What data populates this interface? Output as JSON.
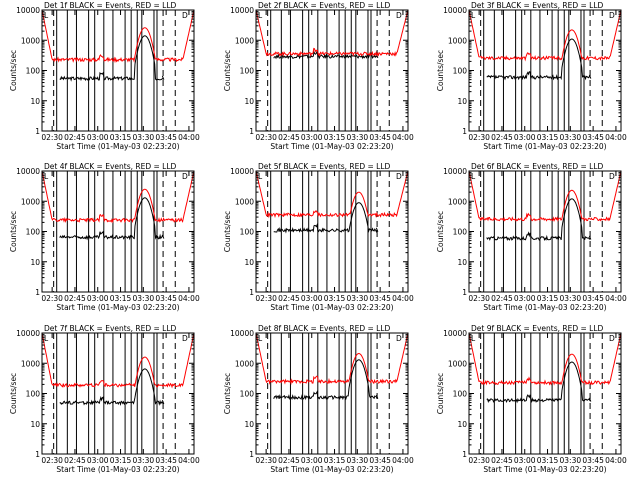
{
  "colors": {
    "events": "#000000",
    "lld": "#ff0000",
    "axes": "#000000",
    "background": "#ffffff"
  },
  "common": {
    "ylabel": "Counts/sec",
    "xlabel": "Start Time (01-May-03 02:23:20)",
    "title_suffix": "BLACK = Events, RED = LLD",
    "x_ticks": [
      "02:30",
      "02:45",
      "03:00",
      "03:15",
      "03:30",
      "03:45",
      "04:00"
    ],
    "y_ticks": [
      "1",
      "10",
      "100",
      "1000",
      "10000"
    ],
    "corner_marks": [
      "L",
      "D"
    ]
  },
  "chart_data": [
    {
      "type": "line",
      "title": "Det 1f  BLACK = Events, RED = LLD",
      "x_range": [
        "02:23:20",
        "04:03:20"
      ],
      "y_scale": "log",
      "ylim": [
        1,
        10000
      ],
      "series": [
        {
          "name": "BLACK = Events",
          "level": 55,
          "dip": 0.0,
          "peak": 1400
        },
        {
          "name": "RED = LLD",
          "level": 230,
          "dip": 0.0,
          "peak": 2600
        }
      ]
    },
    {
      "type": "line",
      "title": "Det 2f  BLACK = Events, RED = LLD",
      "x_range": [
        "02:23:20",
        "04:03:20"
      ],
      "y_scale": "log",
      "ylim": [
        1,
        10000
      ],
      "series": [
        {
          "name": "BLACK = Events",
          "level": 290,
          "dip": 0.0,
          "peak": 0
        },
        {
          "name": "RED = LLD",
          "level": 360,
          "dip": 0.0,
          "peak": 0
        }
      ]
    },
    {
      "type": "line",
      "title": "Det 3f  BLACK = Events, RED = LLD",
      "x_range": [
        "02:23:20",
        "04:03:20"
      ],
      "y_scale": "log",
      "ylim": [
        1,
        10000
      ],
      "series": [
        {
          "name": "BLACK = Events",
          "level": 60,
          "dip": 0.0,
          "peak": 1100
        },
        {
          "name": "RED = LLD",
          "level": 260,
          "dip": 0.0,
          "peak": 2200
        }
      ]
    },
    {
      "type": "line",
      "title": "Det 4f  BLACK = Events, RED = LLD",
      "x_range": [
        "02:23:20",
        "04:03:20"
      ],
      "y_scale": "log",
      "ylim": [
        1,
        10000
      ],
      "series": [
        {
          "name": "BLACK = Events",
          "level": 65,
          "dip": 0.0,
          "peak": 1300
        },
        {
          "name": "RED = LLD",
          "level": 240,
          "dip": 0.0,
          "peak": 2500
        }
      ]
    },
    {
      "type": "line",
      "title": "Det 5f  BLACK = Events, RED = LLD",
      "x_range": [
        "02:23:20",
        "04:03:20"
      ],
      "y_scale": "log",
      "ylim": [
        1,
        10000
      ],
      "series": [
        {
          "name": "BLACK = Events",
          "level": 110,
          "dip": 0.0,
          "peak": 900
        },
        {
          "name": "RED = LLD",
          "level": 360,
          "dip": 0.0,
          "peak": 2000
        }
      ]
    },
    {
      "type": "line",
      "title": "Det 6f  BLACK = Events, RED = LLD",
      "x_range": [
        "02:23:20",
        "04:03:20"
      ],
      "y_scale": "log",
      "ylim": [
        1,
        10000
      ],
      "series": [
        {
          "name": "BLACK = Events",
          "level": 60,
          "dip": 0.0,
          "peak": 1200
        },
        {
          "name": "RED = LLD",
          "level": 260,
          "dip": 0.0,
          "peak": 2300
        }
      ]
    },
    {
      "type": "line",
      "title": "Det 7f  BLACK = Events, RED = LLD",
      "x_range": [
        "02:23:20",
        "04:03:20"
      ],
      "y_scale": "log",
      "ylim": [
        1,
        10000
      ],
      "series": [
        {
          "name": "BLACK = Events",
          "level": 50,
          "dip": 0.0,
          "peak": 650
        },
        {
          "name": "RED = LLD",
          "level": 190,
          "dip": 0.0,
          "peak": 1600
        }
      ]
    },
    {
      "type": "line",
      "title": "Det 8f  BLACK = Events, RED = LLD",
      "x_range": [
        "02:23:20",
        "04:03:20"
      ],
      "y_scale": "log",
      "ylim": [
        1,
        10000
      ],
      "series": [
        {
          "name": "BLACK = Events",
          "level": 75,
          "dip": 0.0,
          "peak": 1300
        },
        {
          "name": "RED = LLD",
          "level": 250,
          "dip": 0.0,
          "peak": 2100
        }
      ]
    },
    {
      "type": "line",
      "title": "Det 9f  BLACK = Events, RED = LLD",
      "x_range": [
        "02:23:20",
        "04:03:20"
      ],
      "y_scale": "log",
      "ylim": [
        1,
        10000
      ],
      "series": [
        {
          "name": "BLACK = Events",
          "level": 60,
          "dip": 0.0,
          "peak": 1100
        },
        {
          "name": "RED = LLD",
          "level": 230,
          "dip": 0.0,
          "peak": 2000
        }
      ]
    }
  ]
}
